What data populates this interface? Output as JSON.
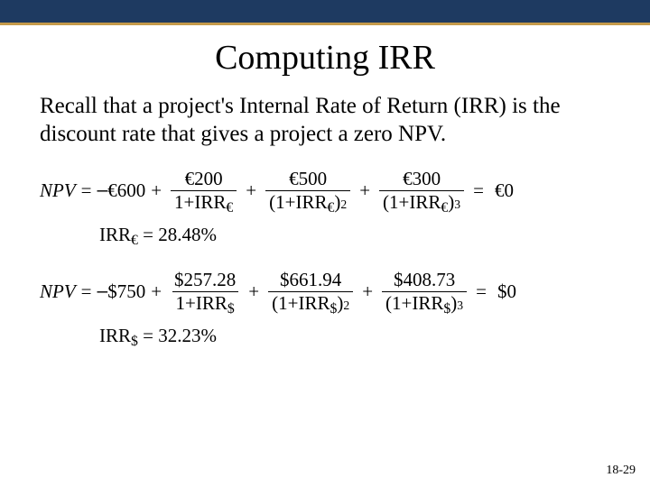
{
  "colors": {
    "bar_bg": "#1e3a61",
    "bar_accent": "#c49a4a",
    "text": "#000000",
    "bg": "#ffffff"
  },
  "title": "Computing IRR",
  "body": "Recall that a project's Internal Rate of Return (IRR) is the discount rate that gives a project a zero NPV.",
  "eq1": {
    "lhs": "NPV",
    "eq": "=",
    "initial_sign": "–",
    "initial": "€600",
    "plus": "+",
    "terms": [
      {
        "num": "€200",
        "den_open": "",
        "den_base": "1+IRR",
        "den_sub": "€",
        "den_close": "",
        "den_sup": ""
      },
      {
        "num": "€500",
        "den_open": "(",
        "den_base": "1+IRR",
        "den_sub": "€",
        "den_close": ")",
        "den_sup": "2"
      },
      {
        "num": "€300",
        "den_open": "(",
        "den_base": "1+IRR",
        "den_sub": "€",
        "den_close": ")",
        "den_sup": "3"
      }
    ],
    "rhs": "€0"
  },
  "result1": {
    "label": "IRR",
    "sub": "€",
    "value": "= 28.48%"
  },
  "eq2": {
    "lhs": "NPV",
    "eq": "=",
    "initial_sign": "–",
    "initial": "$750",
    "plus": "+",
    "terms": [
      {
        "num": "$257.28",
        "den_open": "",
        "den_base": "1+IRR",
        "den_sub": "$",
        "den_close": "",
        "den_sup": ""
      },
      {
        "num": "$661.94",
        "den_open": "(",
        "den_base": "1+IRR",
        "den_sub": "$",
        "den_close": ")",
        "den_sup": "2"
      },
      {
        "num": "$408.73",
        "den_open": "(",
        "den_base": "1+IRR",
        "den_sub": "$",
        "den_close": ")",
        "den_sup": "3"
      }
    ],
    "rhs": "$0"
  },
  "result2": {
    "label": "IRR",
    "sub": "$",
    "value": "= 32.23%"
  },
  "page_num": "18-29"
}
